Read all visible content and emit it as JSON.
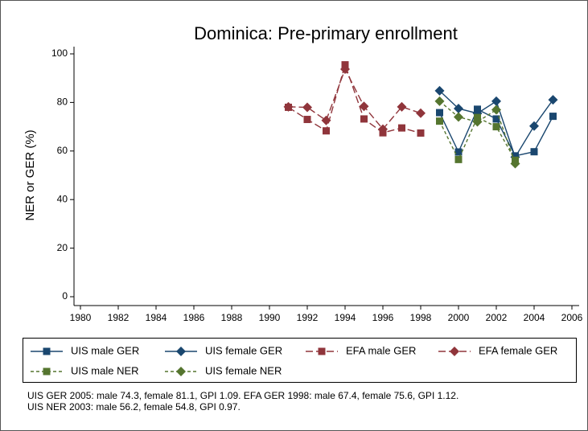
{
  "chart_data": {
    "type": "line",
    "title": "Dominica: Pre-primary enrollment",
    "ylabel": "NER or GER (%)",
    "xlim": [
      1980,
      2006
    ],
    "xticks": [
      1980,
      1982,
      1984,
      1986,
      1988,
      1990,
      1992,
      1994,
      1996,
      1998,
      2000,
      2002,
      2004,
      2006
    ],
    "ylim": [
      0,
      100
    ],
    "yticks": [
      0,
      20,
      40,
      60,
      80,
      100
    ],
    "grid": false,
    "series": [
      {
        "name": "UIS male GER",
        "color": "#1a476f",
        "marker": "square",
        "dash": "solid",
        "x": [
          1999,
          2000,
          2001,
          2002,
          2003,
          2004,
          2005
        ],
        "values": [
          75.8,
          59.6,
          77.2,
          73.2,
          58,
          59.7,
          74.3
        ]
      },
      {
        "name": "UIS female GER",
        "color": "#1a476f",
        "marker": "diamond",
        "dash": "solid",
        "x": [
          1999,
          2000,
          2001,
          2002,
          2003,
          2004,
          2005
        ],
        "values": [
          84.8,
          77.5,
          75.5,
          80.5,
          57.5,
          70.3,
          81.1
        ]
      },
      {
        "name": "EFA male GER",
        "color": "#90353b",
        "marker": "square",
        "dash": "long",
        "x": [
          1991,
          1992,
          1993,
          1994,
          1995,
          1996,
          1997,
          1998
        ],
        "values": [
          78,
          73,
          68.3,
          95.5,
          73.2,
          67.5,
          69.5,
          67.4
        ]
      },
      {
        "name": "EFA female GER",
        "color": "#90353b",
        "marker": "diamond",
        "dash": "long",
        "x": [
          1991,
          1992,
          1993,
          1994,
          1995,
          1996,
          1997,
          1998
        ],
        "values": [
          78.2,
          78,
          72.6,
          93.7,
          78.4,
          69,
          78.2,
          75.6
        ]
      },
      {
        "name": "UIS male NER",
        "color": "#55752f",
        "marker": "square",
        "dash": "short",
        "x": [
          1999,
          2000,
          2001,
          2002,
          2003
        ],
        "values": [
          72.3,
          56.5,
          73.8,
          70,
          56.2
        ]
      },
      {
        "name": "UIS female NER",
        "color": "#55752f",
        "marker": "diamond",
        "dash": "short",
        "x": [
          1999,
          2000,
          2001,
          2002,
          2003
        ],
        "values": [
          80.5,
          74,
          72,
          77,
          54.8
        ]
      }
    ],
    "notes": [
      "UIS GER 2005: male 74.3, female 81.1, GPI 1.09. EFA GER 1998: male 67.4, female 75.6, GPI 1.12.",
      "UIS NER 2003: male 56.2, female 54.8, GPI 0.97."
    ]
  }
}
